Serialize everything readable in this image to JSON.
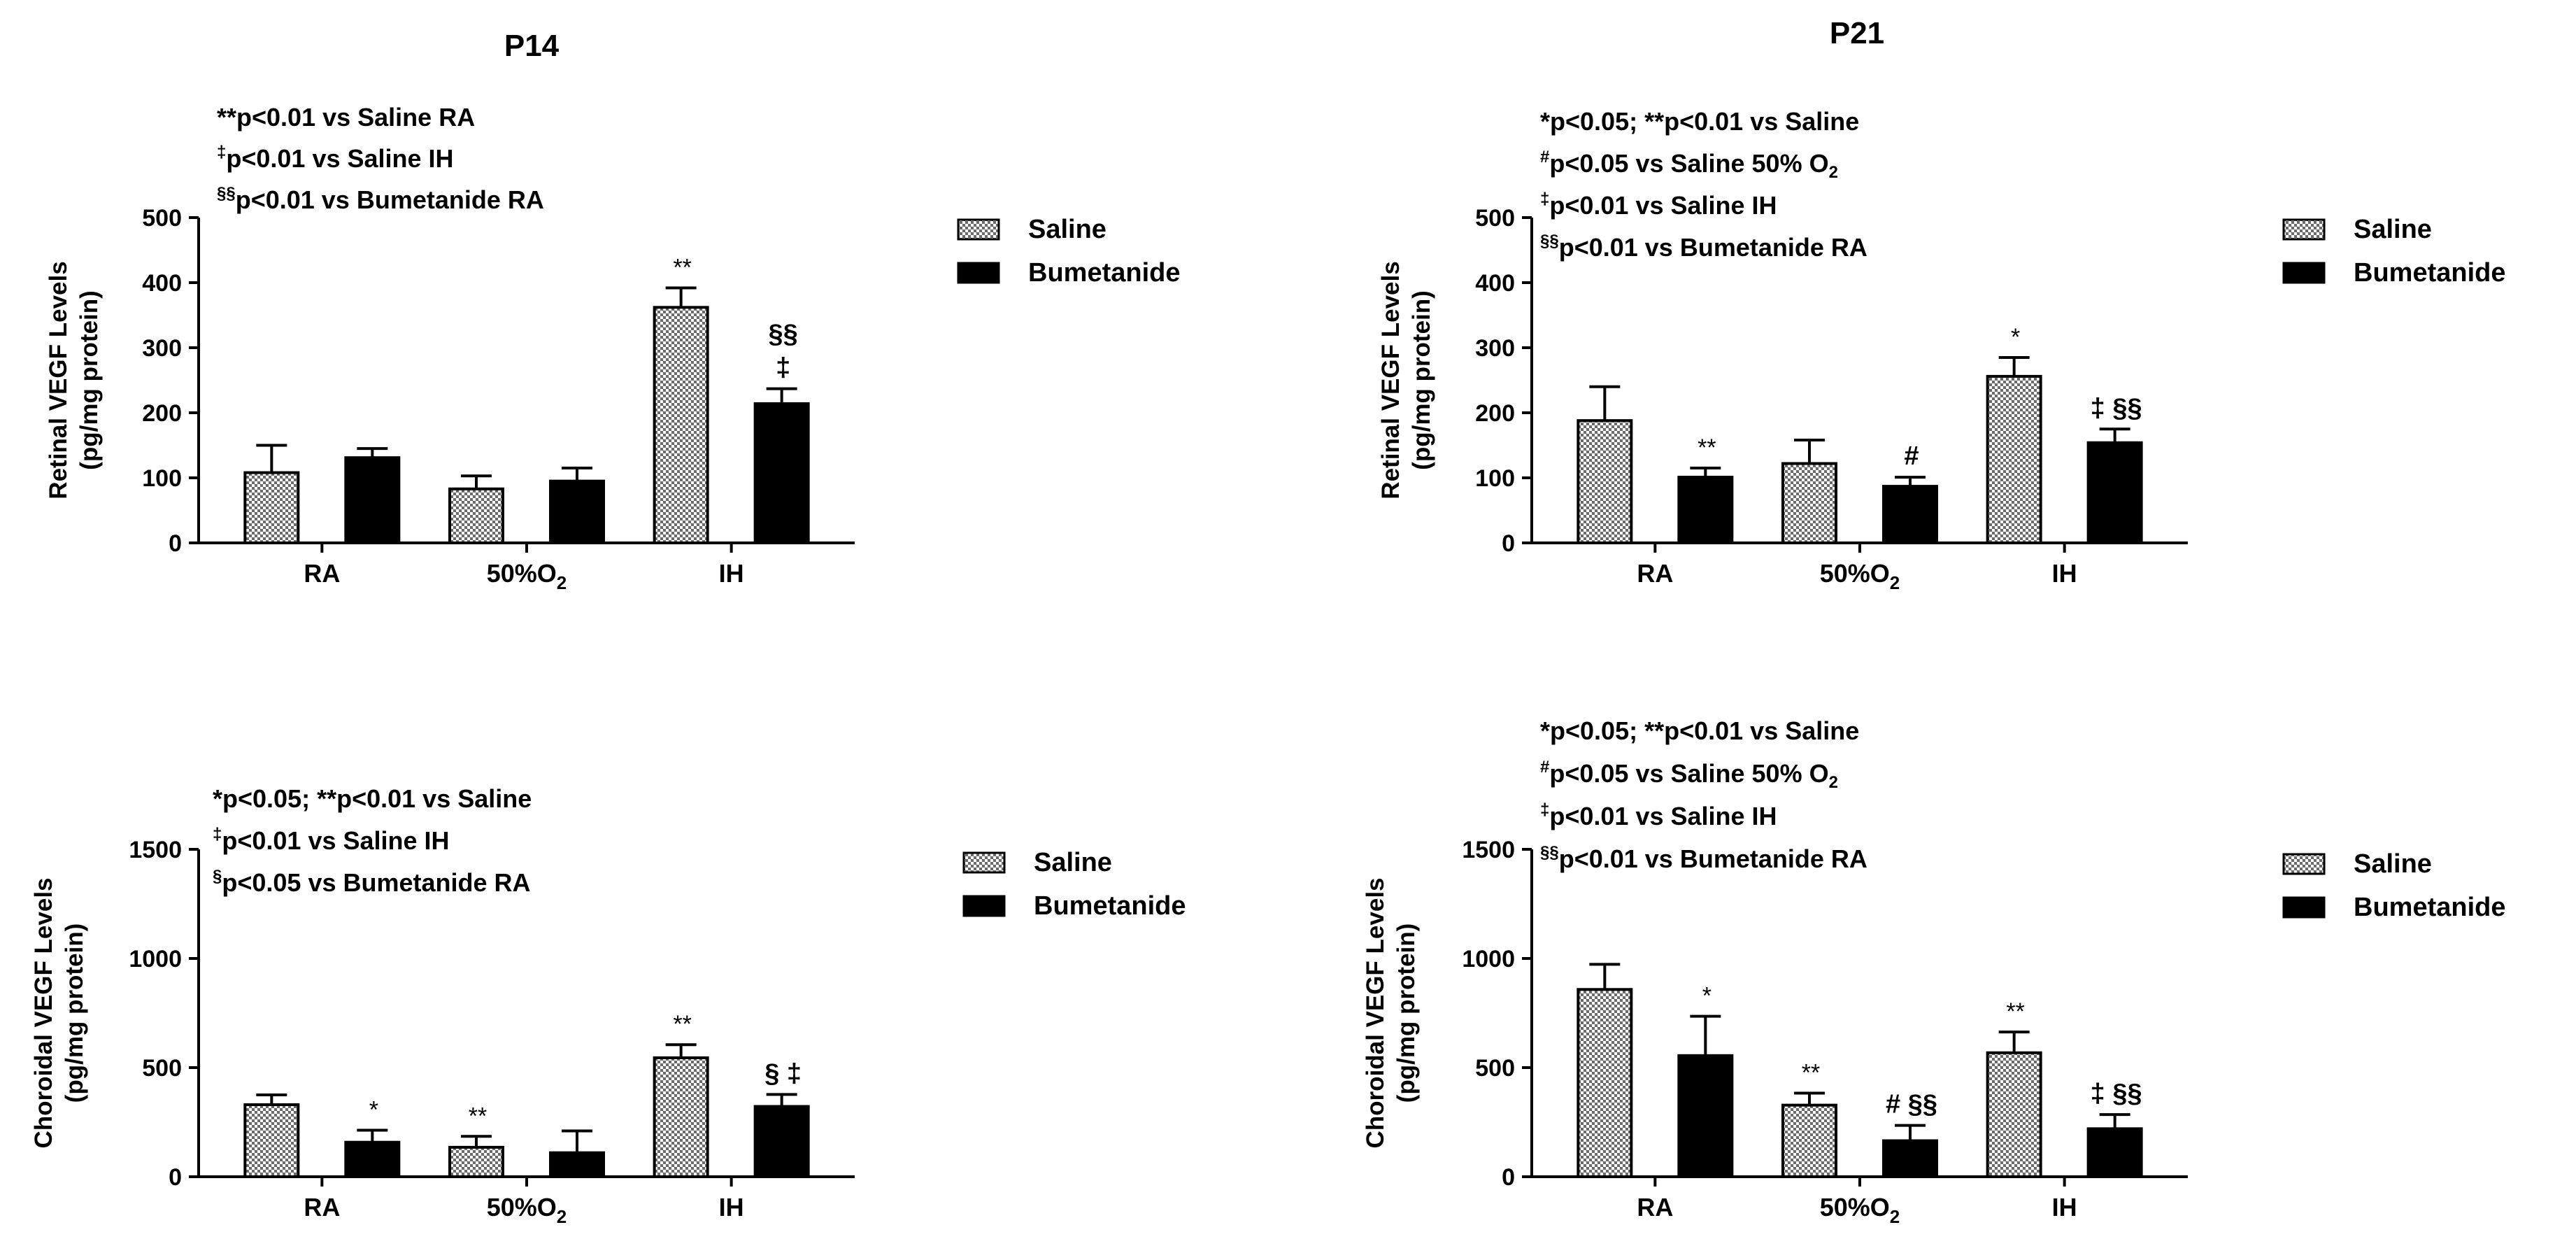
{
  "colors": {
    "saline_fill": "#c8c8c8",
    "bumetanide_fill": "#000000",
    "ink": "#000000"
  },
  "chart_data": [
    {
      "type": "bar",
      "title": "P14",
      "ylabel": [
        "Retinal VEGF Levels",
        "(pg/mg protein)"
      ],
      "ylim": [
        0,
        500
      ],
      "yticks": [
        "0",
        "100",
        "200",
        "300",
        "400",
        "500"
      ],
      "categories": [
        "RA",
        "50%O",
        "IH"
      ],
      "category_sub": [
        "",
        "2",
        ""
      ],
      "legend": [
        "Saline",
        "Bumetanide"
      ],
      "series": [
        {
          "name": "Saline",
          "values": [
            108,
            83,
            362
          ],
          "errors": [
            42,
            20,
            30
          ],
          "annotations": [
            "",
            "",
            "**"
          ]
        },
        {
          "name": "Bumetanide",
          "values": [
            131,
            95,
            214
          ],
          "errors": [
            14,
            20,
            23
          ],
          "annotations": [
            "",
            "",
            "§§|‡"
          ]
        }
      ],
      "notes": [
        {
          "sup": "",
          "text": "**p<0.01 vs Saline RA"
        },
        {
          "sup": "‡",
          "text": "p<0.01 vs Saline IH"
        },
        {
          "sup": "§§",
          "text": "p<0.01 vs Bumetanide RA"
        }
      ]
    },
    {
      "type": "bar",
      "title": "P21",
      "ylabel": [
        "Retinal VEGF Levels",
        "(pg/mg protein)"
      ],
      "ylim": [
        0,
        500
      ],
      "yticks": [
        "0",
        "100",
        "200",
        "300",
        "400",
        "500"
      ],
      "categories": [
        "RA",
        "50%O",
        "IH"
      ],
      "category_sub": [
        "",
        "2",
        ""
      ],
      "legend": [
        "Saline",
        "Bumetanide"
      ],
      "series": [
        {
          "name": "Saline",
          "values": [
            188,
            122,
            256
          ],
          "errors": [
            52,
            36,
            29
          ],
          "annotations": [
            "",
            "",
            "*"
          ]
        },
        {
          "name": "Bumetanide",
          "values": [
            101,
            87,
            154
          ],
          "errors": [
            14,
            14,
            21
          ],
          "annotations": [
            "**",
            "#",
            "‡ §§"
          ]
        }
      ],
      "notes": [
        {
          "sup": "",
          "text": "*p<0.05; **p<0.01 vs Saline"
        },
        {
          "sup": "#",
          "text": "p<0.05 vs Saline 50%  O",
          "sub": "2"
        },
        {
          "sup": "‡",
          "text": "p<0.01 vs Saline IH"
        },
        {
          "sup": "§§",
          "text": "p<0.01 vs Bumetanide RA"
        }
      ]
    },
    {
      "type": "bar",
      "title": "",
      "ylabel": [
        "Choroidal VEGF Levels",
        "(pg/mg protein)"
      ],
      "ylim": [
        0,
        1500
      ],
      "yticks": [
        "0",
        "500",
        "1000",
        "1500"
      ],
      "categories": [
        "RA",
        "50%O",
        "IH"
      ],
      "category_sub": [
        "",
        "2",
        ""
      ],
      "legend": [
        "Saline",
        "Bumetanide"
      ],
      "series": [
        {
          "name": "Saline",
          "values": [
            330,
            135,
            545
          ],
          "errors": [
            45,
            50,
            60
          ],
          "annotations": [
            "",
            "**",
            "**"
          ]
        },
        {
          "name": "Bumetanide",
          "values": [
            158,
            110,
            322
          ],
          "errors": [
            55,
            100,
            55
          ],
          "annotations": [
            "*",
            "",
            "§ ‡"
          ]
        }
      ],
      "notes": [
        {
          "sup": "",
          "text": "*p<0.05; **p<0.01 vs Saline"
        },
        {
          "sup": "‡",
          "text": "p<0.01 vs Saline IH"
        },
        {
          "sup": "§",
          "text": "p<0.05 vs Bumetanide RA"
        }
      ]
    },
    {
      "type": "bar",
      "title": "",
      "ylabel": [
        "Choroidal VEGF Levels",
        "(pg/mg protein)"
      ],
      "ylim": [
        0,
        1500
      ],
      "yticks": [
        "0",
        "500",
        "1000",
        "1500"
      ],
      "categories": [
        "RA",
        "50%O",
        "IH"
      ],
      "category_sub": [
        "",
        "2",
        ""
      ],
      "legend": [
        "Saline",
        "Bumetanide"
      ],
      "series": [
        {
          "name": "Saline",
          "values": [
            858,
            328,
            568
          ],
          "errors": [
            115,
            55,
            95
          ],
          "annotations": [
            "",
            "**",
            "**"
          ]
        },
        {
          "name": "Bumetanide",
          "values": [
            555,
            165,
            220
          ],
          "errors": [
            180,
            70,
            65
          ],
          "annotations": [
            "*",
            "# §§",
            "‡ §§"
          ]
        }
      ],
      "notes": [
        {
          "sup": "",
          "text": "*p<0.05; **p<0.01 vs Saline"
        },
        {
          "sup": "#",
          "text": "p<0.05 vs Saline 50%  O",
          "sub": "2"
        },
        {
          "sup": "‡",
          "text": "p<0.01 vs Saline IH"
        },
        {
          "sup": "§§",
          "text": "p<0.01 vs Bumetanide RA"
        }
      ]
    }
  ]
}
